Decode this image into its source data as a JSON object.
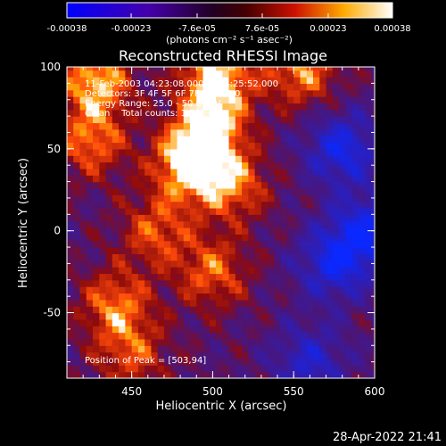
{
  "chart_data": {
    "type": "heatmap",
    "title": "Reconstructed RHESSI Image",
    "xlabel": "Heliocentric X (arcsec)",
    "ylabel": "Heliocentric Y (arcsec)",
    "xlim": [
      410,
      600
    ],
    "ylim": [
      -90,
      100
    ],
    "x_ticks": [
      "450",
      "500",
      "550",
      "600"
    ],
    "x_tick_values": [
      450,
      500,
      550,
      600
    ],
    "y_ticks": [
      "100",
      "50",
      "0",
      "-50"
    ],
    "y_tick_values": [
      100,
      50,
      0,
      -50
    ],
    "colorbar": {
      "ticks": [
        "-0.00038",
        "-0.00023",
        "-7.6e-05",
        "7.6e-05",
        "0.00023",
        "0.00038"
      ],
      "tick_values": [
        -0.00038,
        -0.00023,
        -7.6e-05,
        7.6e-05,
        0.00023,
        0.00038
      ],
      "range": [
        -0.00038,
        0.00038
      ],
      "unit_label": "(photons cm⁻² s⁻¹ asec⁻²)"
    },
    "annotations": [
      "11-Feb-2003 04:23:08.000 to 04:25:52.000",
      "Detectors: 3F 4F 5F 6F 7F 8F, Att 0",
      "Energy Range: 25.0 - 50.0 keV",
      "Clean    Total counts: 1.91E+03"
    ],
    "peak_label": "Position of Peak = [503,94]",
    "peak": [
      503,
      94
    ],
    "bright_regions": [
      {
        "x": 485,
        "y": 40,
        "level": 1.0
      },
      {
        "x": 503,
        "y": 94,
        "level": 1.0
      },
      {
        "x": 498,
        "y": 62,
        "level": 0.9
      },
      {
        "x": 428,
        "y": 92,
        "level": 0.9
      },
      {
        "x": 555,
        "y": 98,
        "level": 0.75
      },
      {
        "x": 512,
        "y": 28,
        "level": 0.7
      },
      {
        "x": 465,
        "y": 0,
        "level": 0.6
      },
      {
        "x": 440,
        "y": -45,
        "level": 0.7
      },
      {
        "x": 500,
        "y": -25,
        "level": 0.65
      },
      {
        "x": 450,
        "y": -75,
        "level": 0.55
      },
      {
        "x": 425,
        "y": 55,
        "level": 0.7
      }
    ],
    "dark_regions": [
      {
        "x": 580,
        "y": 50,
        "level": -0.8
      },
      {
        "x": 575,
        "y": -20,
        "level": -0.75
      },
      {
        "x": 560,
        "y": -80,
        "level": -0.6
      },
      {
        "x": 595,
        "y": 0,
        "level": -0.8
      }
    ]
  },
  "footer": {
    "timestamp": "28-Apr-2022 21:41"
  }
}
